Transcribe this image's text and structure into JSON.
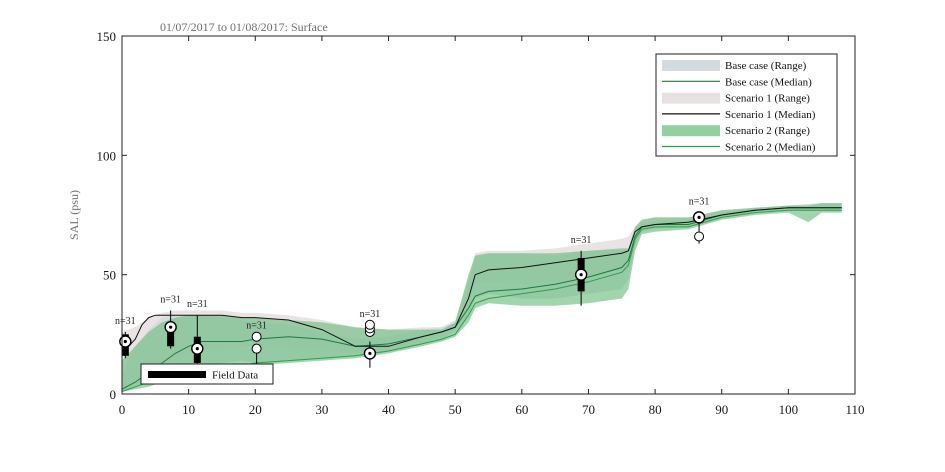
{
  "chart_data": {
    "type": "area",
    "title": "01/07/2017 to 01/08/2017: Surface",
    "ylabel": "SAL (psu)",
    "xlabel": "",
    "xlim": [
      0,
      110
    ],
    "ylim": [
      0,
      150
    ],
    "xticks": [
      0,
      10,
      20,
      30,
      40,
      50,
      60,
      70,
      80,
      90,
      100,
      110
    ],
    "yticks": [
      0,
      50,
      100,
      150
    ],
    "grid": false,
    "legend_position": "top-right",
    "colors": {
      "base_range": "#d2d9de",
      "base_median": "#1f7a3f",
      "s1_range": "#e6dede",
      "s1_median": "#111111",
      "s2_range": "#6fbf82",
      "s2_median": "#2f9e4a"
    },
    "series": [
      {
        "name": "Base case (Range)",
        "kind": "range",
        "x": [
          0,
          2,
          4,
          6,
          8,
          10,
          12,
          15,
          18,
          20,
          25,
          30,
          35,
          40,
          45,
          48,
          50,
          52,
          53,
          55,
          60,
          65,
          70,
          75,
          76,
          77,
          78,
          80,
          85,
          90,
          95,
          100,
          105,
          108
        ],
        "low": [
          1,
          3,
          6,
          9,
          10,
          11,
          12,
          13,
          14,
          13,
          14,
          15,
          16,
          18,
          21,
          23,
          26,
          33,
          40,
          42,
          40,
          40,
          42,
          44,
          48,
          62,
          68,
          69,
          70,
          74,
          76,
          77,
          77,
          77
        ],
        "high": [
          8,
          20,
          27,
          32,
          33,
          33,
          33,
          32,
          31,
          30,
          29,
          26,
          23,
          24,
          27,
          28,
          30,
          45,
          58,
          59,
          59,
          58,
          60,
          60,
          60,
          68,
          72,
          72,
          73,
          76,
          78,
          79,
          80,
          80
        ]
      },
      {
        "name": "Base case (Median)",
        "kind": "median",
        "x": [
          0,
          2,
          4,
          6,
          8,
          10,
          12,
          15,
          18,
          20,
          25,
          30,
          35,
          40,
          45,
          48,
          50,
          52,
          53,
          55,
          60,
          65,
          70,
          75,
          76,
          77,
          78,
          80,
          85,
          90,
          95,
          100,
          105,
          108
        ],
        "y": [
          2,
          5,
          9,
          13,
          17,
          20,
          22,
          22,
          22,
          23,
          24,
          23,
          20,
          21,
          24,
          26,
          28,
          36,
          41,
          43,
          44,
          46,
          49,
          53,
          56,
          66,
          70,
          71,
          71,
          75,
          77,
          78,
          78,
          78
        ]
      },
      {
        "name": "Scenario 1 (Range)",
        "kind": "range",
        "x": [
          0,
          2,
          4,
          6,
          8,
          10,
          12,
          15,
          18,
          20,
          25,
          30,
          35,
          40,
          45,
          48,
          50,
          52,
          53,
          55,
          60,
          65,
          70,
          75,
          76,
          77,
          78,
          80,
          85,
          90,
          95,
          100,
          105,
          108
        ],
        "low": [
          2,
          5,
          9,
          12,
          14,
          16,
          18,
          19,
          20,
          20,
          19,
          18,
          17,
          19,
          22,
          24,
          27,
          38,
          46,
          47,
          46,
          47,
          49,
          52,
          54,
          65,
          69,
          70,
          71,
          74,
          76,
          77,
          77,
          77
        ],
        "high": [
          26,
          28,
          32,
          34,
          35,
          35,
          35,
          35,
          34,
          34,
          33,
          31,
          28,
          27,
          28,
          28,
          31,
          48,
          59,
          60,
          60,
          61,
          63,
          65,
          66,
          70,
          73,
          74,
          74,
          77,
          78,
          79,
          80,
          80
        ]
      },
      {
        "name": "Scenario 1 (Median)",
        "kind": "median",
        "x": [
          0,
          1,
          2,
          3,
          4,
          5,
          6,
          8,
          10,
          12,
          15,
          18,
          20,
          25,
          30,
          35,
          40,
          45,
          48,
          50,
          52,
          53,
          55,
          60,
          65,
          70,
          75,
          76,
          77,
          78,
          80,
          85,
          90,
          95,
          100,
          105,
          108
        ],
        "y": [
          22,
          20,
          23,
          29,
          32,
          33,
          33,
          33,
          33,
          33,
          33,
          32,
          32,
          31,
          27,
          20,
          20,
          24,
          26,
          28,
          40,
          50,
          52,
          53,
          55,
          57,
          59,
          60,
          68,
          70,
          71,
          72,
          75,
          77,
          78,
          78,
          78
        ]
      },
      {
        "name": "Scenario 2 (Range)",
        "kind": "range",
        "x": [
          0,
          2,
          4,
          6,
          8,
          10,
          12,
          15,
          18,
          20,
          25,
          30,
          35,
          40,
          45,
          48,
          50,
          52,
          53,
          55,
          60,
          65,
          70,
          75,
          76,
          77,
          78,
          80,
          85,
          90,
          95,
          100,
          103,
          105,
          108
        ],
        "low": [
          1,
          2,
          3,
          5,
          7,
          9,
          10,
          11,
          12,
          12,
          13,
          14,
          15,
          17,
          20,
          22,
          24,
          30,
          36,
          38,
          37,
          37,
          38,
          40,
          44,
          60,
          67,
          68,
          69,
          73,
          75,
          76,
          72,
          76,
          76
        ],
        "high": [
          14,
          20,
          26,
          30,
          32,
          33,
          33,
          33,
          32,
          32,
          31,
          30,
          28,
          27,
          27,
          27,
          30,
          50,
          58,
          59,
          59,
          59,
          60,
          61,
          61,
          70,
          73,
          74,
          74,
          77,
          78,
          79,
          79,
          80,
          80
        ]
      },
      {
        "name": "Scenario 2 (Median)",
        "kind": "median",
        "x": [
          0,
          2,
          4,
          6,
          8,
          10,
          12,
          15,
          18,
          20,
          25,
          30,
          35,
          40,
          45,
          48,
          50,
          52,
          53,
          55,
          60,
          65,
          70,
          75,
          76,
          77,
          78,
          80,
          85,
          90,
          95,
          100,
          105,
          108
        ],
        "y": [
          1,
          3,
          5,
          8,
          10,
          11,
          12,
          12,
          12,
          13,
          14,
          15,
          16,
          18,
          21,
          23,
          25,
          33,
          38,
          40,
          42,
          44,
          47,
          51,
          54,
          65,
          69,
          70,
          70,
          74,
          76,
          77,
          77,
          77
        ]
      }
    ],
    "field_data": {
      "name": "Field Data",
      "boxes": [
        {
          "x": 0.5,
          "median": 22,
          "q1": 16,
          "q3": 25,
          "whisker_low": 15,
          "whisker_high": 26,
          "outliers": [],
          "n_label": "n=31"
        },
        {
          "x": 7.3,
          "median": 28,
          "q1": 20,
          "q3": 30,
          "whisker_low": 19,
          "whisker_high": 35,
          "outliers": [],
          "n_label": "n=31"
        },
        {
          "x": 11.3,
          "median": 19,
          "q1": 13,
          "q3": 24,
          "whisker_low": 12,
          "whisker_high": 33,
          "outliers": [],
          "n_label": "n=31"
        },
        {
          "x": 20.2,
          "median": null,
          "q1": null,
          "q3": null,
          "whisker_low": 12,
          "whisker_high": 17,
          "outliers": [
            19,
            24
          ],
          "n_label": "n=31"
        },
        {
          "x": 37.2,
          "median": 17,
          "q1": 16,
          "q3": 18,
          "whisker_low": 11,
          "whisker_high": 22,
          "outliers": [
            26,
            27.5,
            29
          ],
          "n_label": "n=31"
        },
        {
          "x": 68.9,
          "median": 50,
          "q1": 43,
          "q3": 57,
          "whisker_low": 37,
          "whisker_high": 60,
          "outliers": [],
          "n_label": "n=31"
        },
        {
          "x": 86.6,
          "median": 74,
          "q1": 73,
          "q3": 75,
          "whisker_low": 63,
          "whisker_high": 76,
          "outliers": [
            66
          ],
          "n_label": "n=31"
        }
      ]
    }
  }
}
